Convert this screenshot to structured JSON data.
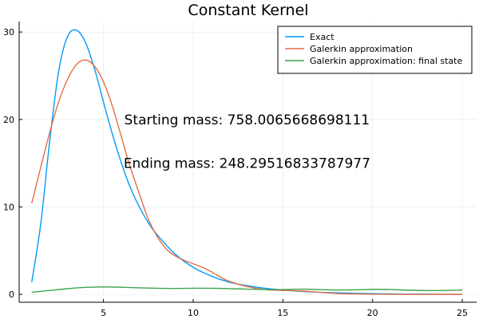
{
  "chart_data": {
    "type": "line",
    "title": "Constant Kernel",
    "xlabel": "",
    "ylabel": "",
    "xlim": [
      0.3,
      25.8
    ],
    "ylim": [
      -0.9,
      31.2
    ],
    "xticks": [
      5,
      10,
      15,
      20,
      25
    ],
    "yticks": [
      0,
      10,
      20,
      30
    ],
    "grid": true,
    "legend_position": "top-right",
    "annotations": [
      {
        "text": "Starting mass: 758.0065668698111",
        "x": 13,
        "y": 20
      },
      {
        "text": "Ending mass: 248.29516833787977",
        "x": 13,
        "y": 15
      }
    ],
    "series": [
      {
        "name": "Exact",
        "color": "#009af9",
        "x": [
          1,
          1.5,
          2,
          2.5,
          3,
          3.5,
          4,
          4.5,
          5,
          5.5,
          6,
          6.5,
          7,
          7.5,
          8,
          9,
          10,
          11,
          12,
          13,
          14,
          15,
          16,
          17,
          18,
          19,
          20,
          21,
          22,
          23,
          24,
          25
        ],
        "y": [
          1.4,
          8.0,
          17.5,
          25.5,
          29.5,
          30.2,
          28.8,
          25.8,
          22.0,
          18.3,
          15.0,
          12.2,
          10.0,
          8.2,
          6.8,
          4.6,
          3.1,
          2.1,
          1.4,
          1.0,
          0.7,
          0.5,
          0.35,
          0.25,
          0.18,
          0.12,
          0.08,
          0.05,
          0.03,
          0.02,
          0.01,
          0.0
        ]
      },
      {
        "name": "Galerkin approximation",
        "color": "#e26f46",
        "x": [
          1,
          1.5,
          2,
          2.5,
          3,
          3.5,
          4,
          4.5,
          5,
          5.5,
          6,
          6.5,
          7,
          7.5,
          8,
          8.5,
          9,
          9.5,
          10,
          10.5,
          11,
          11.5,
          12,
          13,
          14,
          15,
          16,
          17,
          18,
          19,
          20,
          21,
          22,
          23,
          24,
          25
        ],
        "y": [
          10.4,
          14.5,
          18.5,
          22.0,
          24.6,
          26.3,
          26.8,
          26.1,
          24.3,
          21.5,
          18.0,
          14.5,
          11.5,
          8.6,
          6.6,
          5.2,
          4.4,
          3.9,
          3.5,
          3.1,
          2.6,
          2.0,
          1.5,
          0.9,
          0.55,
          0.45,
          0.4,
          0.25,
          0.1,
          0.05,
          0.02,
          0.01,
          0.0,
          0.0,
          0.0,
          0.0
        ]
      },
      {
        "name": "Galerkin approximation: final state",
        "color": "#3da44d",
        "x": [
          1,
          2,
          3,
          4,
          5,
          6,
          7,
          8,
          9,
          10,
          11,
          12,
          13,
          14,
          15,
          16,
          17,
          18,
          19,
          20,
          21,
          22,
          23,
          24,
          25
        ],
        "y": [
          0.25,
          0.45,
          0.65,
          0.8,
          0.85,
          0.82,
          0.75,
          0.7,
          0.68,
          0.7,
          0.7,
          0.66,
          0.6,
          0.55,
          0.55,
          0.6,
          0.55,
          0.5,
          0.52,
          0.57,
          0.55,
          0.48,
          0.44,
          0.45,
          0.5
        ]
      }
    ]
  }
}
